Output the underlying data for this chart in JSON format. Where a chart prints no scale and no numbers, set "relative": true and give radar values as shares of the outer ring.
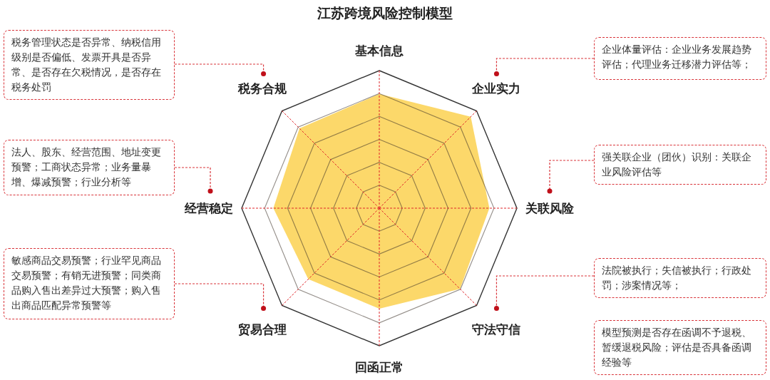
{
  "chart_data": {
    "type": "radar",
    "title": "江苏跨境风险控制模型",
    "relative": true,
    "categories": [
      "基本信息",
      "企业实力",
      "关联风险",
      "守法守信",
      "回函正常",
      "贸易合理",
      "经营稳定",
      "税务合规"
    ],
    "series": [
      {
        "color": "#fcd86a",
        "values": [
          0.83,
          0.94,
          0.8,
          0.83,
          0.73,
          0.73,
          0.77,
          0.82
        ]
      }
    ],
    "annotations": [
      "税务管理状态是否异常、纳税信用级别是否偏低、发票开具是否异常、是否存在欠税情况，是否存在税务处罚",
      "法人、股东、经营范围、地址变更预警；工商状态异常；业务量暴增、爆减预警；行业分析等",
      "敏感商品交易预警；行业罕见商品交易预警；有销无进预警；同类商品购入售出差异过大预警；购入售出商品匹配异常预警等",
      "企业体量评估：企业业务发展趋势评估；代理业务迁移潜力评估等；",
      "强关联企业（团伙）识别：关联企业风险评估等",
      "法院被执行；失信被执行；行政处罚；涉案情况等；",
      "模型预测是否存在函调不予退税、暂缓退税风险；评估是否具备函调经验等"
    ]
  }
}
